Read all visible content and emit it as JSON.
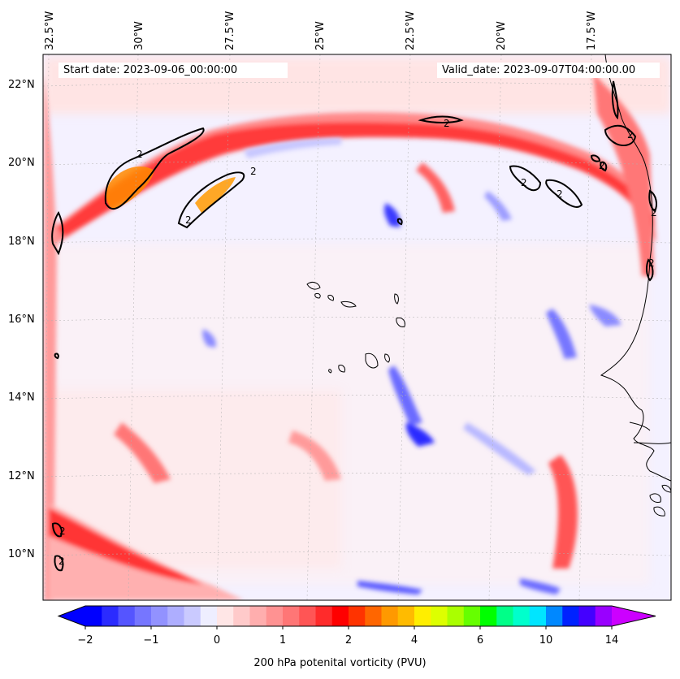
{
  "map": {
    "projection": "regional map, Cabo Verde and West African coast",
    "field": "200 hPa potential vorticity",
    "contour_level": "2",
    "contour_color": "#000000",
    "gridlines": true
  },
  "header": {
    "start_date": "Start date: 2023-09-06_00:00:00",
    "valid_date": "Valid_date: 2023-09-07T04:00:00.00"
  },
  "longitude_labels": [
    "32.5°W",
    "30°W",
    "27.5°W",
    "25°W",
    "22.5°W",
    "20°W",
    "17.5°W"
  ],
  "latitude_labels": [
    "22°N",
    "20°N",
    "18°N",
    "16°N",
    "14°N",
    "12°N",
    "10°N"
  ],
  "colorbar": {
    "label": "200 hPa potenital vorticity (PVU)",
    "tick_labels": [
      "−2",
      "−1",
      "0",
      "1",
      "2",
      "4",
      "6",
      "10",
      "14"
    ],
    "colors": [
      "#0000ff",
      "#2b2bff",
      "#5555ff",
      "#7676ff",
      "#9292ff",
      "#aeaeff",
      "#cacaff",
      "#eeeeff",
      "#ffe6e6",
      "#ffcaca",
      "#ffaeae",
      "#ff9292",
      "#ff7676",
      "#ff5555",
      "#ff2b2b",
      "#ff0000",
      "#ff3300",
      "#ff6600",
      "#ff9900",
      "#ffbb00",
      "#ffee00",
      "#ddff00",
      "#aaff00",
      "#66ff00",
      "#00ff00",
      "#00ff88",
      "#00ffcc",
      "#00e5ff",
      "#0088ff",
      "#0022ff",
      "#4400ff",
      "#9900ff"
    ],
    "extend_low_color": "#0000ff",
    "extend_high_color": "#cc00ff"
  }
}
